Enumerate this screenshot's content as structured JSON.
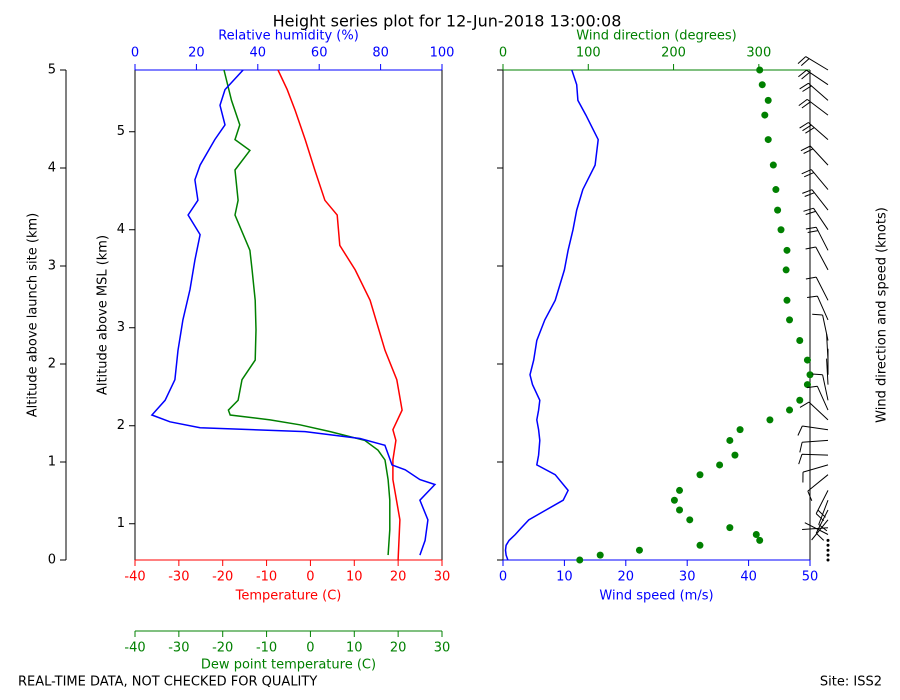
{
  "chart_data": [
    {
      "type": "profile",
      "title": "Height series plot for 12-Jun-2018 13:00:08",
      "ylabel": "Altitude above launch site (km)",
      "ylim": [
        0,
        5
      ],
      "yticks": [
        0,
        1,
        2,
        3,
        4,
        5
      ],
      "y2label": "Altitude above MSL (km)",
      "y2lim": [
        0.63,
        5.63
      ],
      "y2ticks": [
        1,
        2,
        3,
        4,
        5
      ],
      "xlabel": "Temperature (C)",
      "xlim": [
        -40,
        30
      ],
      "xticks": [
        -40,
        -30,
        -20,
        -10,
        0,
        10,
        20,
        30
      ],
      "x2label": "Relative humidity (%)",
      "x2lim": [
        0,
        100
      ],
      "x2ticks": [
        0,
        20,
        40,
        60,
        80,
        100
      ],
      "x3label": "Dew point temperature (C)",
      "x3lim": [
        -40,
        30
      ],
      "x3ticks": [
        -40,
        -30,
        -20,
        -10,
        0,
        10,
        20,
        30
      ],
      "series": [
        {
          "axis": "x",
          "color": "#ff0000",
          "altitude": [
            0.0,
            0.41,
            0.82,
            1.02,
            1.22,
            1.33,
            1.53,
            1.84,
            2.14,
            2.65,
            2.96,
            3.21,
            3.52,
            3.67,
            3.98,
            4.29,
            4.59,
            4.8,
            5.0
          ],
          "values": [
            20,
            20.4,
            18.8,
            18.8,
            19.5,
            18.8,
            20.9,
            19.7,
            17,
            13.6,
            10.2,
            6.7,
            6.1,
            3.3,
            1.0,
            -1.2,
            -3.5,
            -5.3,
            -7.4
          ]
        },
        {
          "axis": "x3",
          "color": "#008000",
          "altitude": [
            0.05,
            0.31,
            0.61,
            0.82,
            1.02,
            1.12,
            1.22,
            1.31,
            1.38,
            1.43,
            1.48,
            1.53,
            1.63,
            1.84,
            2.04,
            2.35,
            2.65,
            2.96,
            3.16,
            3.52,
            3.67,
            3.98,
            4.18,
            4.29,
            4.44,
            4.69,
            5.0
          ],
          "values": [
            17.7,
            18.1,
            18.1,
            17.7,
            17,
            15.4,
            12.4,
            4.5,
            -2.4,
            -9.2,
            -18.3,
            -18.7,
            -16.5,
            -15.6,
            -12.6,
            -12.4,
            -12.6,
            -13.3,
            -13.8,
            -17.2,
            -16.5,
            -17.2,
            -13.8,
            -17.2,
            -16.1,
            -18.0,
            -19.7
          ]
        },
        {
          "axis": "x2",
          "color": "#0000ff",
          "altitude": [
            0.05,
            0.2,
            0.41,
            0.61,
            0.77,
            0.82,
            0.92,
            0.97,
            1.17,
            1.24,
            1.31,
            1.35,
            1.41,
            1.48,
            1.63,
            1.84,
            2.14,
            2.45,
            2.76,
            3.06,
            3.32,
            3.52,
            3.67,
            3.88,
            4.03,
            4.29,
            4.44,
            4.64,
            4.8,
            5.0
          ],
          "values": [
            92.8,
            94.5,
            95.4,
            92.8,
            97.7,
            92.8,
            88,
            83.7,
            81.4,
            73.3,
            55.4,
            21.2,
            11.4,
            5.5,
            9.8,
            13,
            14,
            15.6,
            17.9,
            19.5,
            21.2,
            17.3,
            20.5,
            19.5,
            21.2,
            26,
            29.3,
            27.7,
            29.3,
            35.2
          ]
        }
      ],
      "footer_left": "REAL-TIME DATA, NOT CHECKED FOR QUALITY"
    },
    {
      "type": "wind",
      "xlabel": "Wind speed (m/s)",
      "xlim": [
        0,
        50
      ],
      "xticks": [
        0,
        10,
        20,
        30,
        40,
        50
      ],
      "x2label": "Wind direction (degrees)",
      "x2lim": [
        0,
        360
      ],
      "x2ticks": [
        0,
        100,
        200,
        300
      ],
      "ylim": [
        0,
        5
      ],
      "yticks": [
        0,
        1,
        2,
        3,
        4,
        5
      ],
      "barb_label": "Wind direction and speed (knots)",
      "altitude": [
        0.0,
        0.05,
        0.1,
        0.15,
        0.2,
        0.26,
        0.33,
        0.41,
        0.51,
        0.61,
        0.71,
        0.87,
        0.97,
        1.07,
        1.22,
        1.33,
        1.43,
        1.53,
        1.63,
        1.79,
        1.89,
        2.04,
        2.24,
        2.45,
        2.65,
        2.96,
        3.16,
        3.37,
        3.57,
        3.78,
        4.03,
        4.29,
        4.54,
        4.69,
        4.85,
        5.0
      ],
      "series": [
        {
          "axis": "x",
          "kind": "line",
          "color": "#0000ff",
          "values": [
            0.8,
            0.5,
            0.4,
            0.5,
            1.0,
            2,
            3,
            4.2,
            7,
            9.8,
            10.6,
            8.5,
            5.5,
            5.8,
            6,
            5.8,
            5.5,
            5.8,
            6,
            4.8,
            4.4,
            5,
            5.5,
            6.8,
            8.5,
            10,
            10.6,
            11.4,
            12,
            13,
            15,
            15.5,
            13.5,
            12.2,
            12,
            11.2
          ]
        },
        {
          "axis": "x2",
          "kind": "scatter",
          "color": "#008000",
          "values": [
            90,
            114,
            160,
            231,
            301,
            297,
            266,
            219,
            207,
            201,
            207,
            231,
            254,
            272,
            266,
            278,
            313,
            336,
            348,
            357,
            360,
            357,
            348,
            336,
            333,
            332,
            333,
            326,
            322,
            320,
            317,
            311,
            307,
            311,
            304,
            301
          ]
        }
      ],
      "footer_right": "Site: ISS2"
    }
  ]
}
